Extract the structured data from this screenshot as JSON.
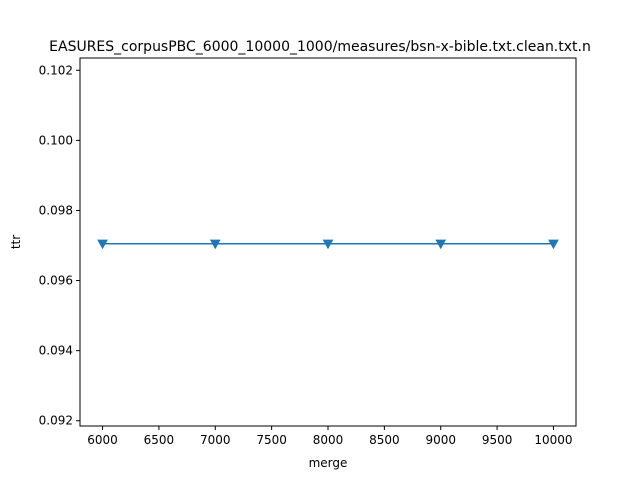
{
  "chart_data": {
    "type": "line",
    "title": "EASURES_corpusPBC_6000_10000_1000/measures/bsn-x-bible.txt.clean.txt.n",
    "xlabel": "merge",
    "ylabel": "ttr",
    "xlim": [
      5800,
      10200
    ],
    "ylim": [
      0.09185,
      0.10235
    ],
    "x_ticks": [
      6000,
      6500,
      7000,
      7500,
      8000,
      8500,
      9000,
      9500,
      10000
    ],
    "y_ticks": [
      0.092,
      0.094,
      0.096,
      0.098,
      0.1,
      0.102
    ],
    "y_tick_labels": [
      "0.092",
      "0.094",
      "0.096",
      "0.098",
      "0.100",
      "0.102"
    ],
    "grid": false,
    "series": [
      {
        "x": [
          6000,
          7000,
          8000,
          9000,
          10000
        ],
        "values": [
          0.09705,
          0.09705,
          0.09705,
          0.09705,
          0.09705
        ],
        "color": "#1f77b4",
        "marker": "triangle-down"
      }
    ]
  }
}
